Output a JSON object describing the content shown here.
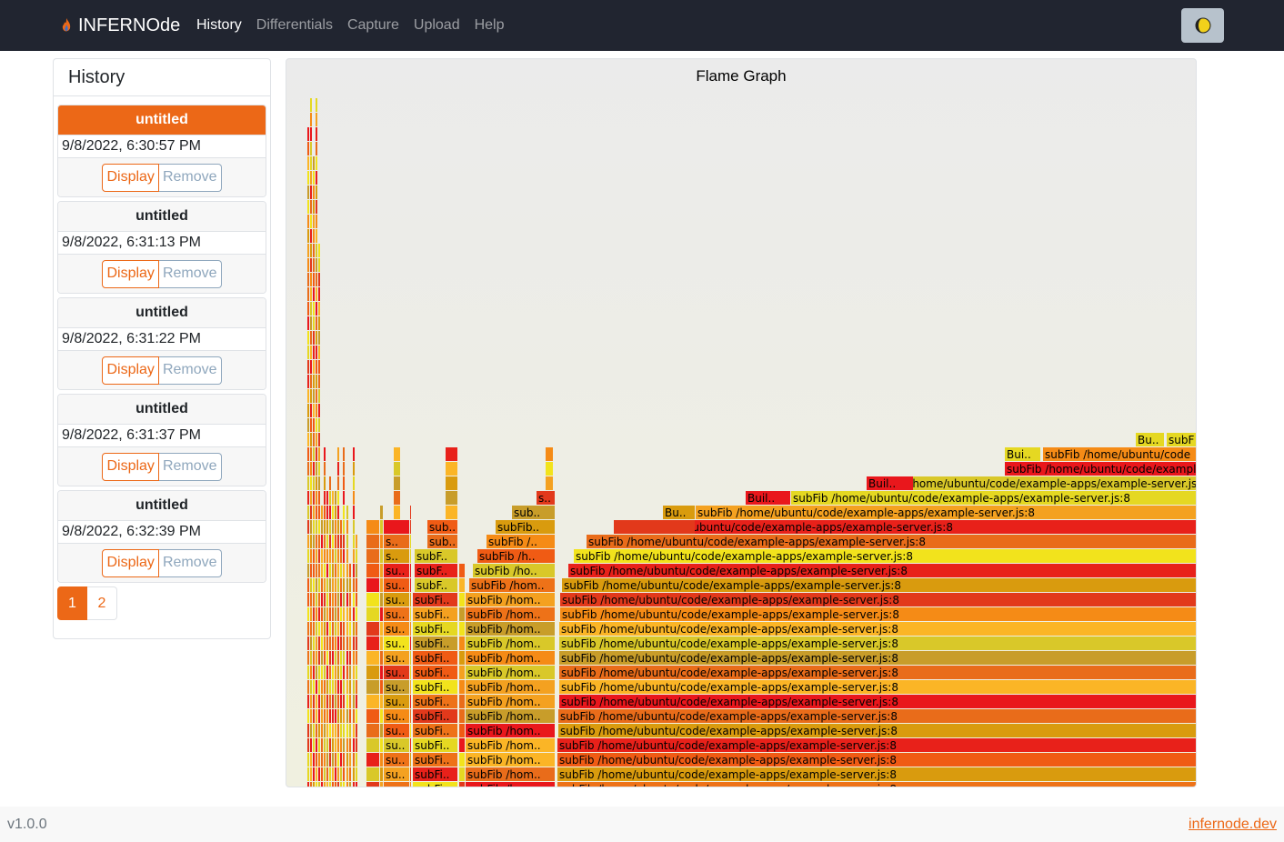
{
  "navbar": {
    "brand": "INFERNOde",
    "links": [
      "History",
      "Differentials",
      "Capture",
      "Upload",
      "Help"
    ],
    "active_link": "History",
    "theme_icon": "half-moon-icon"
  },
  "sidebar": {
    "title": "History",
    "items": [
      {
        "title": "untitled",
        "date": "9/8/2022, 6:30:57 PM",
        "display": "Display",
        "remove": "Remove",
        "active": true
      },
      {
        "title": "untitled",
        "date": "9/8/2022, 6:31:13 PM",
        "display": "Display",
        "remove": "Remove",
        "active": false
      },
      {
        "title": "untitled",
        "date": "9/8/2022, 6:31:22 PM",
        "display": "Display",
        "remove": "Remove",
        "active": false
      },
      {
        "title": "untitled",
        "date": "9/8/2022, 6:31:37 PM",
        "display": "Display",
        "remove": "Remove",
        "active": false
      },
      {
        "title": "untitled",
        "date": "9/8/2022, 6:32:39 PM",
        "display": "Display",
        "remove": "Remove",
        "active": false
      }
    ],
    "pages": [
      "1",
      "2"
    ],
    "active_page": "1"
  },
  "flame_graph": {
    "title": "Flame Graph",
    "labels": {
      "full": "subFib /home/ubuntu/code/example-apps/example-server.js:8",
      "builtin": "Bu..",
      "builtin2": "Bui..",
      "builtin3": "Buil..",
      "sub_short": "su..",
      "sub_med": "subFi..",
      "sub_hom": "subFib /hom..",
      "sub_ho": "subFib /ho..",
      "sub_h": "subFib /h..",
      "sub_slash": "subFib /..",
      "subFib_dots": "subFib..",
      "sub_three": "sub..",
      "subF": "subF..",
      "s": "s..",
      "subF_edge": "subF",
      "sub_home_ubuntu": "subFib /home/ubuntu/code",
      "sub_example": "subFib /home/ubuntu/code/example-apps/example"
    },
    "colors": [
      "#e8211a",
      "#f05b14",
      "#f58b16",
      "#fbb526",
      "#e5d822",
      "#d99b0e",
      "#e2391b",
      "#f2e31c",
      "#ee7218",
      "#d9c829",
      "#f4a120",
      "#e96c1a",
      "#c89d2a",
      "#e9171c"
    ]
  },
  "footer": {
    "version": "v1.0.0",
    "link": "infernode.dev"
  }
}
